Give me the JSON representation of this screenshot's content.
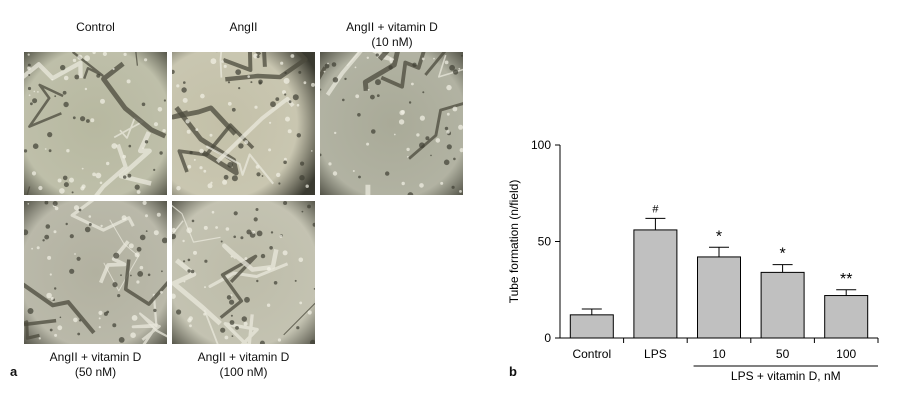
{
  "panel_a": {
    "letter": "a",
    "images": [
      {
        "label_lines": [
          "Control"
        ],
        "tone": "#b7b8a0"
      },
      {
        "label_lines": [
          "AngII"
        ],
        "tone": "#c3c0a8"
      },
      {
        "label_lines": [
          "AngII + vitamin D",
          "(10 nM)"
        ],
        "tone": "#a9aa98"
      },
      {
        "label_lines": [
          "AngII + vitamin D",
          "(50 nM)"
        ],
        "tone": "#b2b1a0"
      },
      {
        "label_lines": [
          "AngII + vitamin D",
          "(100 nM)"
        ],
        "tone": "#bdbca9"
      }
    ]
  },
  "panel_b": {
    "letter": "b"
  },
  "chart_data": {
    "type": "bar",
    "ylabel": "Tube formation (n/field)",
    "xlabel": "LPS + vitamin D, nM",
    "ylim": [
      0,
      100
    ],
    "yticks": [
      0,
      50,
      100
    ],
    "categories": [
      "Control",
      "LPS",
      "10",
      "50",
      "100"
    ],
    "values": [
      12,
      56,
      42,
      34,
      22
    ],
    "errors": [
      3,
      6,
      5,
      4,
      3
    ],
    "annotations": [
      "",
      "#",
      "*",
      "*",
      "**"
    ],
    "bar_color": "#c0c0c0",
    "grid": false
  }
}
